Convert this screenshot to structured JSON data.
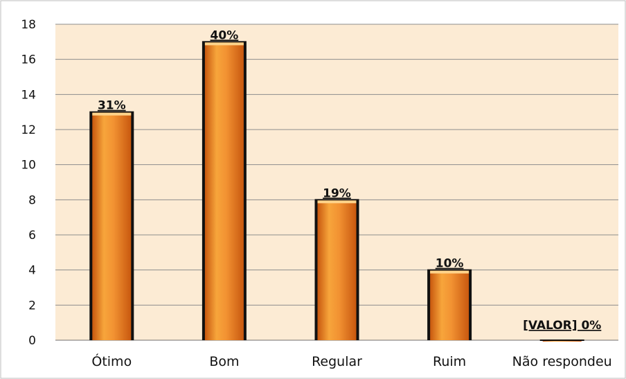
{
  "chart_data": {
    "type": "bar",
    "categories": [
      "Ótimo",
      "Bom",
      "Regular",
      "Ruim",
      "Não respondeu"
    ],
    "values": [
      13,
      17,
      8,
      4,
      0
    ],
    "data_labels": [
      "31%",
      "40%",
      "19%",
      "10%",
      "[VALOR] 0%"
    ],
    "ylim": [
      0,
      18
    ],
    "yticks": [
      0,
      2,
      4,
      6,
      8,
      10,
      12,
      14,
      16,
      18
    ],
    "grid": true,
    "title": "",
    "xlabel": "",
    "ylabel": "",
    "colors": {
      "plot_background": "#fcebd4",
      "bar_light": "#f9b14a",
      "bar_dark": "#e2731d",
      "bar_edge": "#111111",
      "gridline": "#8c8c8c",
      "frame": "#bdbdbd"
    }
  }
}
